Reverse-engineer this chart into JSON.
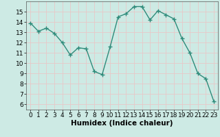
{
  "x": [
    0,
    1,
    2,
    3,
    4,
    5,
    6,
    7,
    8,
    9,
    10,
    11,
    12,
    13,
    14,
    15,
    16,
    17,
    18,
    19,
    20,
    21,
    22,
    23
  ],
  "y": [
    13.9,
    13.1,
    13.4,
    12.9,
    12.0,
    10.8,
    11.5,
    11.4,
    9.2,
    8.9,
    11.6,
    14.5,
    14.8,
    15.5,
    15.5,
    14.2,
    15.1,
    14.7,
    14.3,
    12.4,
    11.0,
    9.0,
    8.5,
    6.3
  ],
  "line_color": "#2e8b7a",
  "marker": "+",
  "marker_size": 4,
  "line_width": 1.0,
  "xlabel": "Humidex (Indice chaleur)",
  "xlim": [
    -0.5,
    23.5
  ],
  "ylim": [
    5.5,
    16
  ],
  "yticks": [
    6,
    7,
    8,
    9,
    10,
    11,
    12,
    13,
    14,
    15
  ],
  "xticks": [
    0,
    1,
    2,
    3,
    4,
    5,
    6,
    7,
    8,
    9,
    10,
    11,
    12,
    13,
    14,
    15,
    16,
    17,
    18,
    19,
    20,
    21,
    22,
    23
  ],
  "background_color": "#cdeae4",
  "grid_color": "#e8c8c8",
  "tick_fontsize": 6.5,
  "xlabel_fontsize": 7.5
}
